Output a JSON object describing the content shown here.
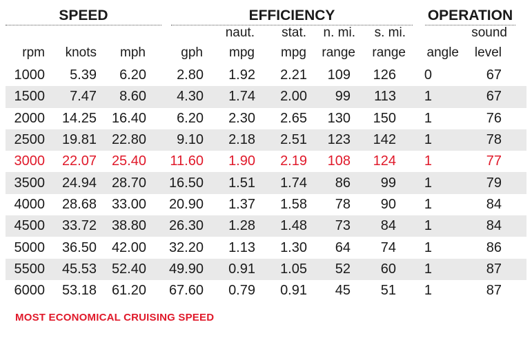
{
  "chart_data": {
    "type": "table",
    "groups": [
      {
        "label": "SPEED"
      },
      {
        "label": "EFFICIENCY"
      },
      {
        "label": "OPERATION"
      }
    ],
    "columns": [
      {
        "line1": "",
        "line2": "rpm"
      },
      {
        "line1": "",
        "line2": "knots"
      },
      {
        "line1": "",
        "line2": "mph"
      },
      {
        "line1": "",
        "line2": "gph"
      },
      {
        "line1": "naut.",
        "line2": "mpg"
      },
      {
        "line1": "stat.",
        "line2": "mpg"
      },
      {
        "line1": "n. mi.",
        "line2": "range"
      },
      {
        "line1": "s. mi.",
        "line2": "range"
      },
      {
        "line1": "",
        "line2": "angle"
      },
      {
        "line1": "sound",
        "line2": "level"
      }
    ],
    "rows": [
      [
        "1000",
        "5.39",
        "6.20",
        "2.80",
        "1.92",
        "2.21",
        "109",
        "126",
        "0",
        "67"
      ],
      [
        "1500",
        "7.47",
        "8.60",
        "4.30",
        "1.74",
        "2.00",
        "99",
        "113",
        "1",
        "67"
      ],
      [
        "2000",
        "14.25",
        "16.40",
        "6.20",
        "2.30",
        "2.65",
        "130",
        "150",
        "1",
        "76"
      ],
      [
        "2500",
        "19.81",
        "22.80",
        "9.10",
        "2.18",
        "2.51",
        "123",
        "142",
        "1",
        "78"
      ],
      [
        "3000",
        "22.07",
        "25.40",
        "11.60",
        "1.90",
        "2.19",
        "108",
        "124",
        "1",
        "77"
      ],
      [
        "3500",
        "24.94",
        "28.70",
        "16.50",
        "1.51",
        "1.74",
        "86",
        "99",
        "1",
        "79"
      ],
      [
        "4000",
        "28.68",
        "33.00",
        "20.90",
        "1.37",
        "1.58",
        "78",
        "90",
        "1",
        "84"
      ],
      [
        "4500",
        "33.72",
        "38.80",
        "26.30",
        "1.28",
        "1.48",
        "73",
        "84",
        "1",
        "84"
      ],
      [
        "5000",
        "36.50",
        "42.00",
        "32.20",
        "1.13",
        "1.30",
        "64",
        "74",
        "1",
        "86"
      ],
      [
        "5500",
        "45.53",
        "52.40",
        "49.90",
        "0.91",
        "1.05",
        "52",
        "60",
        "1",
        "87"
      ],
      [
        "6000",
        "53.18",
        "61.20",
        "67.60",
        "0.79",
        "0.91",
        "45",
        "51",
        "1",
        "87"
      ]
    ],
    "highlight_row": 4,
    "highlight_color": "#e0192a",
    "footnote": "MOST ECONOMICAL CRUISING SPEED"
  }
}
